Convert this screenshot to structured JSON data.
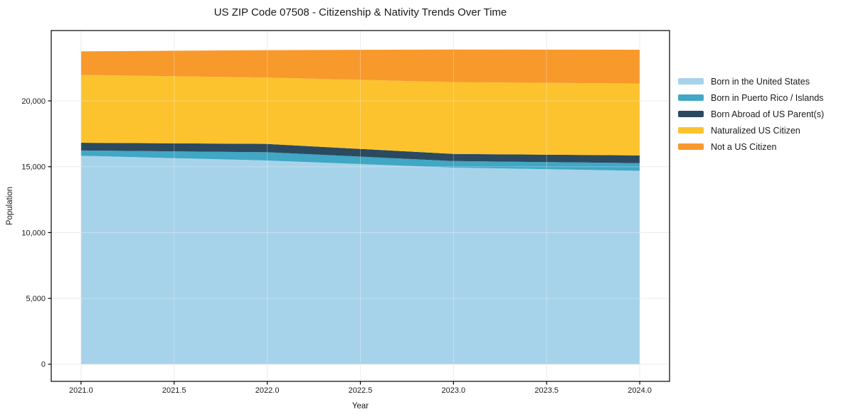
{
  "window": {
    "background": "#ffffff"
  },
  "chart_data": {
    "type": "area",
    "stacked": true,
    "title": "US ZIP Code 07508 - Citizenship & Nativity Trends Over Time",
    "xlabel": "Year",
    "ylabel": "Population",
    "x": [
      2021.0,
      2022.0,
      2023.0,
      2024.0
    ],
    "series": [
      {
        "name": "Born in the United States",
        "color": "#a7d3ea",
        "values": [
          15830,
          15470,
          14930,
          14690
        ]
      },
      {
        "name": "Born in Puerto Rico / Islands",
        "color": "#40a7c5",
        "values": [
          400,
          630,
          500,
          580
        ]
      },
      {
        "name": "Born Abroad of US Parent(s)",
        "color": "#2b4a5f",
        "values": [
          590,
          630,
          540,
          590
        ]
      },
      {
        "name": "Naturalized US Citizen",
        "color": "#fcc32f",
        "values": [
          5150,
          5040,
          5450,
          5460
        ]
      },
      {
        "name": "Not a US Citizen",
        "color": "#f8992c",
        "values": [
          1790,
          2080,
          2480,
          2560
        ]
      }
    ],
    "stacked_totals": [
      23760,
      23850,
      23900,
      23880
    ],
    "xlim": [
      2020.84,
      2024.16
    ],
    "ylim": [
      -1300,
      25340
    ],
    "xticks": [
      2021.0,
      2021.5,
      2022.0,
      2022.5,
      2023.0,
      2023.5,
      2024.0
    ],
    "xtick_labels": [
      "2021.0",
      "2021.5",
      "2022.0",
      "2022.5",
      "2023.0",
      "2023.5",
      "2024.0"
    ],
    "yticks": [
      0,
      5000,
      10000,
      15000,
      20000
    ],
    "ytick_labels": [
      "0",
      "5,000",
      "10,000",
      "15,000",
      "20,000"
    ],
    "grid": true,
    "legend_position": "right",
    "axis_color": "#000000",
    "grid_color": "#e6e6e6",
    "text_color": "#1a1a1a"
  }
}
